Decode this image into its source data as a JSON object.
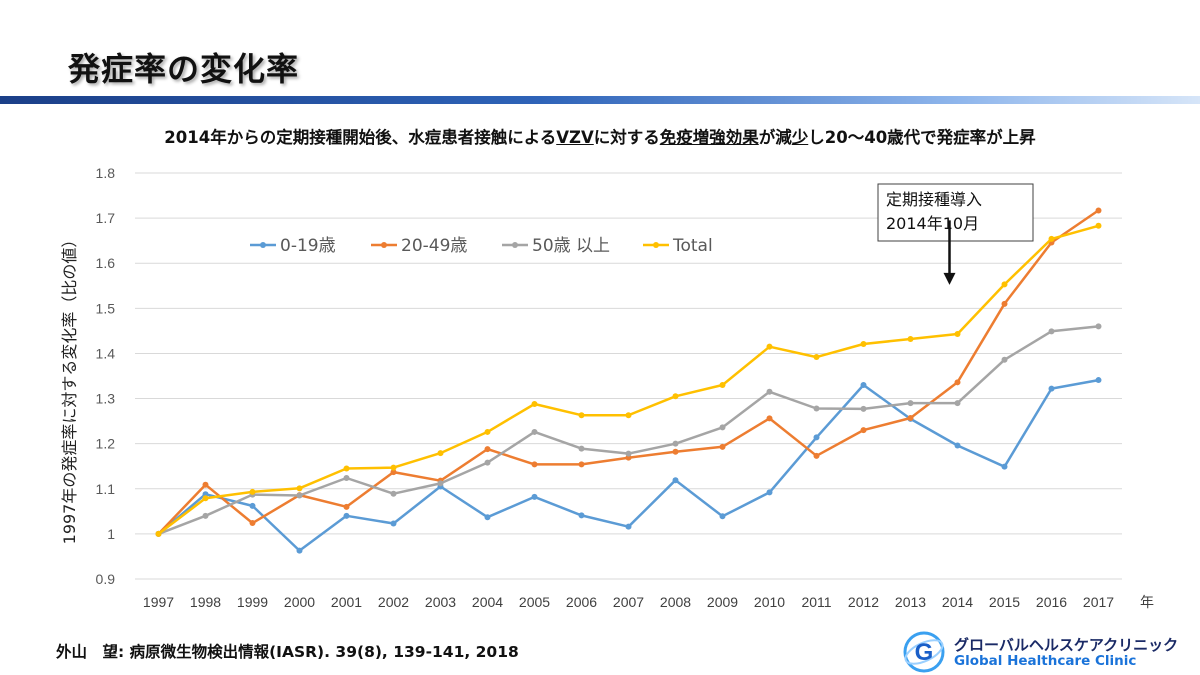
{
  "slide": {
    "title": "発症率の変化率",
    "subtitle_parts": [
      "2014年からの定期接種開始後、水痘患者接触による",
      "VZV",
      "に対する",
      "免疫増強効果",
      "が減",
      "少",
      "し20〜40歳代で発症率が上昇"
    ],
    "citation": "外山　望: 病原微生物検出情報(IASR). 39(8), 139-141, 2018",
    "logo": {
      "name_ja": "グローバルヘルスケアクリニック",
      "name_en": "Global Healthcare Clinic",
      "mark_letter": "G"
    }
  },
  "chart_data": {
    "type": "line",
    "ylabel": "1997年の発症率に対する変化率（比の値）",
    "xlabel": "年",
    "ylim": [
      0.9,
      1.8
    ],
    "yticks": [
      0.9,
      1,
      1.1,
      1.2,
      1.3,
      1.4,
      1.5,
      1.6,
      1.7,
      1.8
    ],
    "ytick_labels": [
      "0.9",
      "1",
      "1.1",
      "1.2",
      "1.3",
      "1.4",
      "1.5",
      "1.6",
      "1.7",
      "1.8"
    ],
    "categories": [
      "1997",
      "1998",
      "1999",
      "2000",
      "2001",
      "2002",
      "2003",
      "2004",
      "2005",
      "2006",
      "2007",
      "2008",
      "2009",
      "2010",
      "2011",
      "2012",
      "2013",
      "2014",
      "2015",
      "2016",
      "2017"
    ],
    "grid": true,
    "legend_position": "top-left",
    "series": [
      {
        "name": "0-19歳",
        "color": "#5b9bd5",
        "values": [
          1.0,
          1.088,
          1.062,
          0.963,
          1.04,
          1.023,
          1.105,
          1.037,
          1.082,
          1.041,
          1.016,
          1.119,
          1.039,
          1.092,
          1.214,
          1.33,
          1.255,
          1.196,
          1.149,
          1.322,
          1.341
        ]
      },
      {
        "name": "20-49歳",
        "color": "#ed7d31",
        "values": [
          1.0,
          1.109,
          1.024,
          1.086,
          1.06,
          1.137,
          1.118,
          1.188,
          1.154,
          1.154,
          1.169,
          1.182,
          1.193,
          1.256,
          1.173,
          1.23,
          1.257,
          1.336,
          1.51,
          1.646,
          1.717
        ]
      },
      {
        "name": "50歳 以上",
        "color": "#a5a5a5",
        "values": [
          1.0,
          1.04,
          1.087,
          1.085,
          1.124,
          1.089,
          1.112,
          1.158,
          1.226,
          1.189,
          1.178,
          1.2,
          1.236,
          1.315,
          1.278,
          1.277,
          1.29,
          1.29,
          1.386,
          1.449,
          1.46
        ]
      },
      {
        "name": "Total",
        "color": "#ffc000",
        "values": [
          1.0,
          1.079,
          1.093,
          1.101,
          1.145,
          1.147,
          1.179,
          1.226,
          1.288,
          1.263,
          1.263,
          1.305,
          1.33,
          1.415,
          1.392,
          1.421,
          1.432,
          1.443,
          1.553,
          1.654,
          1.683
        ]
      }
    ],
    "annotation": {
      "lines": [
        "定期接種導入",
        "2014年10月"
      ],
      "category": "2014",
      "arrow_from": 1.695,
      "arrow_to": 1.552
    }
  }
}
